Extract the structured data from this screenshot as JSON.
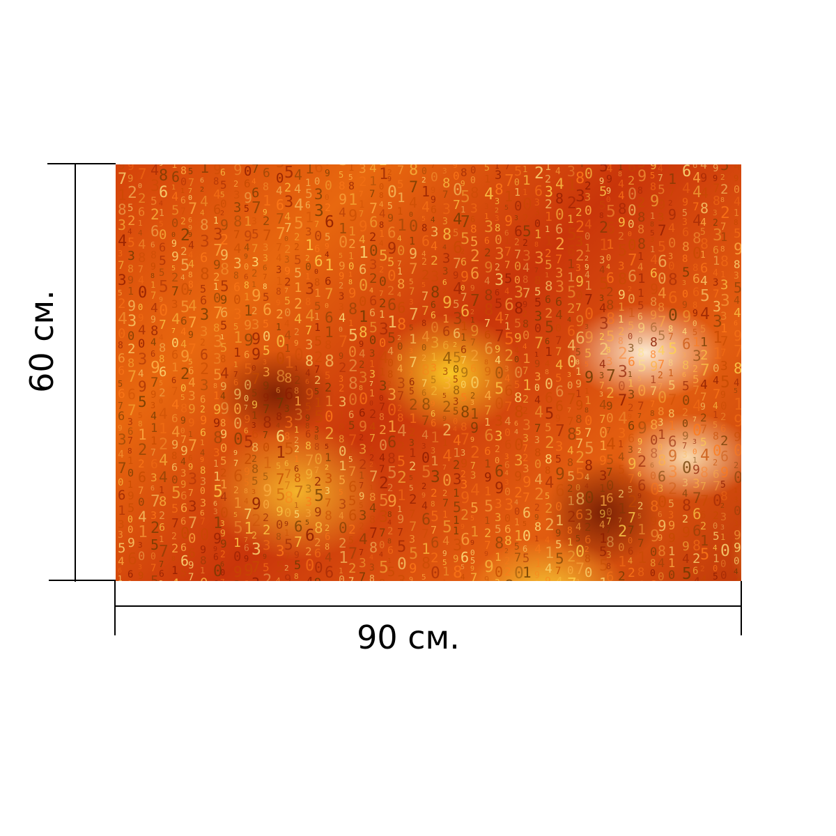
{
  "product": {
    "image_icon": "fire-numbers-texture-image",
    "palette": [
      "#c23a0a",
      "#e8680f",
      "#ffd228",
      "#fff5dc",
      "#500a00"
    ]
  },
  "dimensions": {
    "height_label": "60 см.",
    "width_label": "90 см."
  }
}
